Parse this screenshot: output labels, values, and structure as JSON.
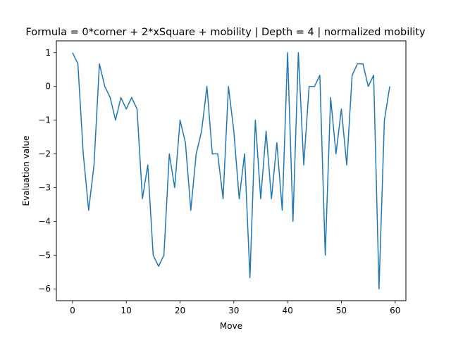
{
  "chart_data": {
    "type": "line",
    "title": "Formula = 0*corner + 2*xSquare + mobility | Depth = 4 | normalized mobility",
    "xlabel": "Move",
    "ylabel": "Evaluation value",
    "xlim": [
      -3,
      62
    ],
    "ylim": [
      -6.35,
      1.35
    ],
    "xticks": [
      0,
      10,
      20,
      30,
      40,
      50,
      60
    ],
    "yticks": [
      -6,
      -5,
      -4,
      -3,
      -2,
      -1,
      0,
      1
    ],
    "grid": false,
    "legend": "none",
    "series": [
      {
        "color": "#1f77b4",
        "x": [
          0,
          1,
          2,
          3,
          4,
          5,
          6,
          7,
          8,
          9,
          10,
          11,
          12,
          13,
          14,
          15,
          16,
          17,
          18,
          19,
          20,
          21,
          22,
          23,
          24,
          25,
          26,
          27,
          28,
          29,
          30,
          31,
          32,
          33,
          34,
          35,
          36,
          37,
          38,
          39,
          40,
          41,
          42,
          43,
          44,
          45,
          46,
          47,
          48,
          49,
          50,
          51,
          52,
          53,
          54,
          55,
          56,
          57,
          58,
          59
        ],
        "values": [
          1,
          0.67,
          -2,
          -3.67,
          -2.33,
          0.67,
          0,
          -0.33,
          -1,
          -0.33,
          -0.67,
          -0.33,
          -0.67,
          -3.33,
          -2.33,
          -5,
          -5.33,
          -5,
          -2,
          -3,
          -1,
          -1.67,
          -3.67,
          -2,
          -1.33,
          0,
          -2,
          -2,
          -3.33,
          0,
          -1.33,
          -3.33,
          -2,
          -5.67,
          -1,
          -3.33,
          -1.33,
          -3.33,
          -1.67,
          -3.67,
          1,
          -4,
          1,
          -2.33,
          0,
          0,
          0.33,
          -5,
          -0.33,
          -2,
          -0.67,
          -2.33,
          0.33,
          0.67,
          0.67,
          0,
          0.33,
          -6,
          -1,
          0
        ]
      }
    ]
  }
}
